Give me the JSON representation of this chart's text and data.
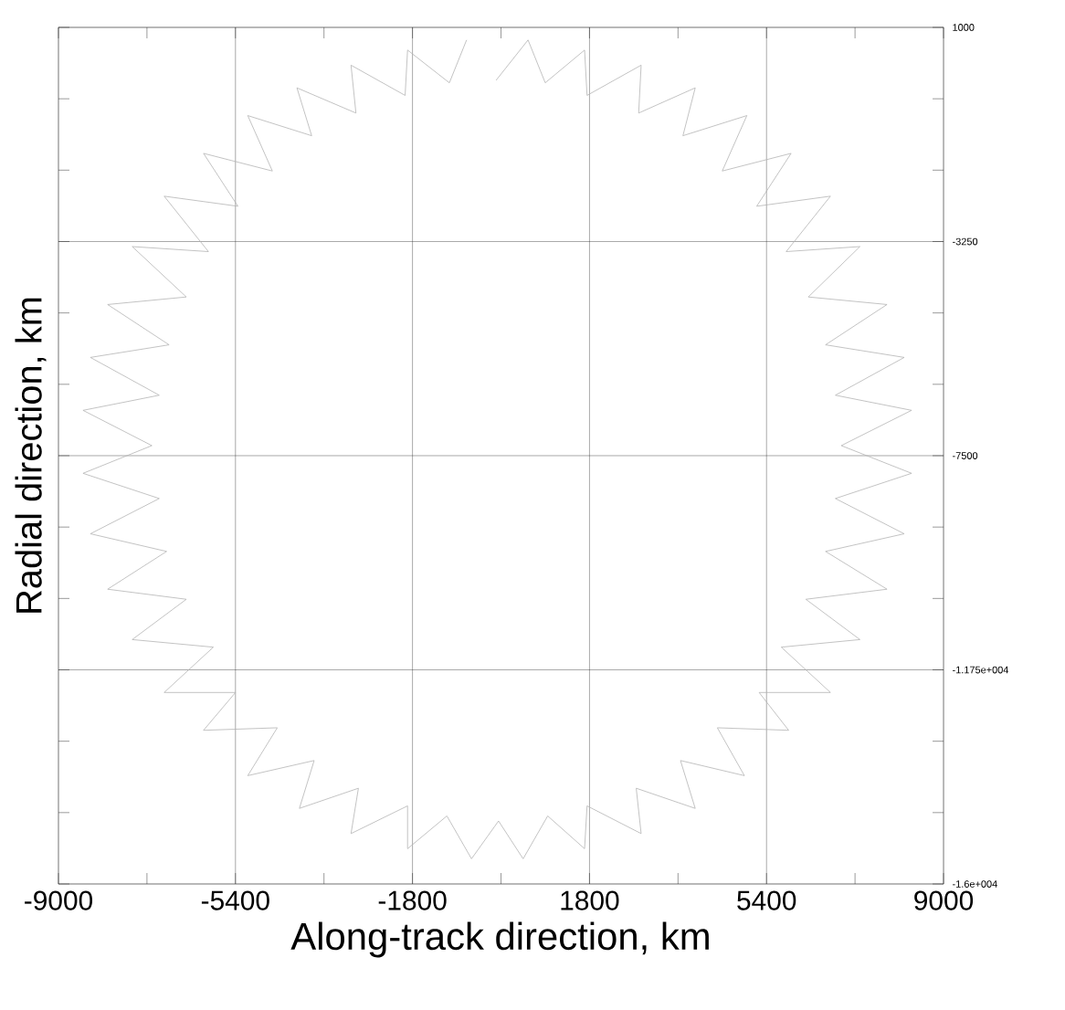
{
  "chart_data": {
    "type": "line",
    "xlabel": "Along-track direction, km",
    "ylabel": "Radial direction, km",
    "xlim": [
      -9000,
      9000
    ],
    "ylim": [
      -16000,
      1000
    ],
    "xticks": [
      -9000,
      -5400,
      -1800,
      1800,
      5400,
      9000
    ],
    "yticks": [
      1000,
      -3250,
      -7500,
      {
        "value": -11750,
        "label": "-1.175e+004"
      },
      {
        "value": -16000,
        "label": "-1.6e+004"
      }
    ],
    "grid": true,
    "x": [
      -700,
      -1050,
      -1900,
      -1950,
      -3050,
      -2950,
      -4150,
      -3850,
      -5150,
      -4650,
      -6050,
      -5350,
      -6850,
      -5950,
      -7500,
      -6400,
      -8000,
      -6750,
      -8350,
      -6950,
      -8500,
      -7100,
      -8500,
      -6950,
      -8350,
      -6800,
      -8000,
      -6400,
      -7500,
      -5850,
      -6850,
      -5400,
      -6050,
      -4550,
      -5150,
      -3800,
      -4100,
      -2900,
      -3050,
      -1900,
      -1900,
      -1100,
      -600,
      -50,
      450,
      950,
      1700,
      1750,
      2850,
      2750,
      3950,
      3650,
      4950,
      4400,
      5850,
      5250,
      6700,
      5700,
      7300,
      6200,
      7850,
      6600,
      8200,
      6800,
      8350,
      6920,
      8350,
      6800,
      8200,
      6600,
      7850,
      6250,
      7300,
      5800,
      6700,
      5200,
      5900,
      4500,
      5000,
      3700,
      3950,
      2800,
      2850,
      1750,
      1700,
      900,
      550,
      -100
    ],
    "series": [
      {
        "color": "#b4b4b4",
        "values": [
          750,
          -100,
          550,
          -350,
          250,
          -700,
          -200,
          -1150,
          -750,
          -1850,
          -1500,
          -2550,
          -2350,
          -3450,
          -3350,
          -4350,
          -4500,
          -5300,
          -5550,
          -6300,
          -6600,
          -7300,
          -7850,
          -8350,
          -9050,
          -9400,
          -10150,
          -10350,
          -11150,
          -11300,
          -12200,
          -12200,
          -12950,
          -12900,
          -13850,
          -13550,
          -14500,
          -14100,
          -15000,
          -14450,
          -15300,
          -14650,
          -15500,
          -14750,
          -15500,
          -14650,
          -15300,
          -14450,
          -15000,
          -14100,
          -14500,
          -13550,
          -13850,
          -12900,
          -12950,
          -12200,
          -12200,
          -11300,
          -11150,
          -10350,
          -10150,
          -9400,
          -9050,
          -8350,
          -7850,
          -7300,
          -6600,
          -6300,
          -5550,
          -5300,
          -4500,
          -4350,
          -3350,
          -3450,
          -2350,
          -2550,
          -1500,
          -1850,
          -750,
          -1150,
          -200,
          -700,
          250,
          -350,
          550,
          -100,
          750,
          -50
        ]
      }
    ]
  }
}
